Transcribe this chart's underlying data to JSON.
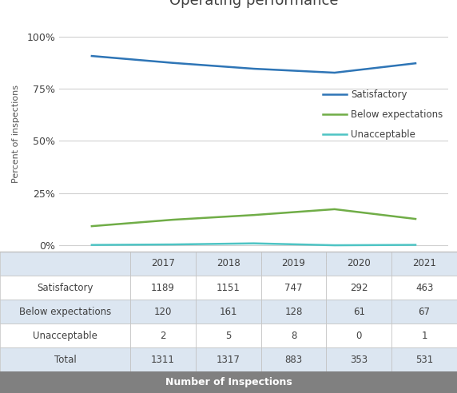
{
  "title": "Operating performance",
  "years": [
    2017,
    2018,
    2019,
    2020,
    2021
  ],
  "satisfactory_pct": [
    90.7,
    87.4,
    84.6,
    82.7,
    87.2
  ],
  "below_pct": [
    9.15,
    12.23,
    14.49,
    17.28,
    12.62
  ],
  "unacceptable_pct": [
    0.15,
    0.38,
    0.91,
    0.0,
    0.19
  ],
  "satisfactory_color": "#2e75b6",
  "below_color": "#70ad47",
  "unacceptable_color": "#4ec4c4",
  "ylabel": "Percent of inspections",
  "yticks": [
    0,
    25,
    50,
    75,
    100
  ],
  "ytick_labels": [
    "0%",
    "25%",
    "50%",
    "75%",
    "100%"
  ],
  "table_rows": [
    "Satisfactory",
    "Below expectations",
    "Unacceptable",
    "Total"
  ],
  "table_cols": [
    "2017",
    "2018",
    "2019",
    "2020",
    "2021"
  ],
  "table_values": [
    [
      1189,
      1151,
      747,
      292,
      463
    ],
    [
      120,
      161,
      128,
      61,
      67
    ],
    [
      2,
      5,
      8,
      0,
      1
    ],
    [
      1311,
      1317,
      883,
      353,
      531
    ]
  ],
  "table_footer": "Number of Inspections",
  "background_color": "#ffffff",
  "table_header_bg": "#dce6f1",
  "table_row_bg_odd": "#ffffff",
  "table_row_bg_even": "#dce6f1",
  "table_footer_bg": "#808080",
  "table_text_color": "#404040",
  "table_footer_text": "#ffffff",
  "border_color": "#c0c0c0",
  "chart_bg": "#ffffff",
  "grid_color": "#d0d0d0",
  "title_fontsize": 13,
  "axis_fontsize": 8,
  "tick_fontsize": 9,
  "legend_fontsize": 8.5,
  "table_fontsize": 8.5,
  "footer_fontsize": 9
}
